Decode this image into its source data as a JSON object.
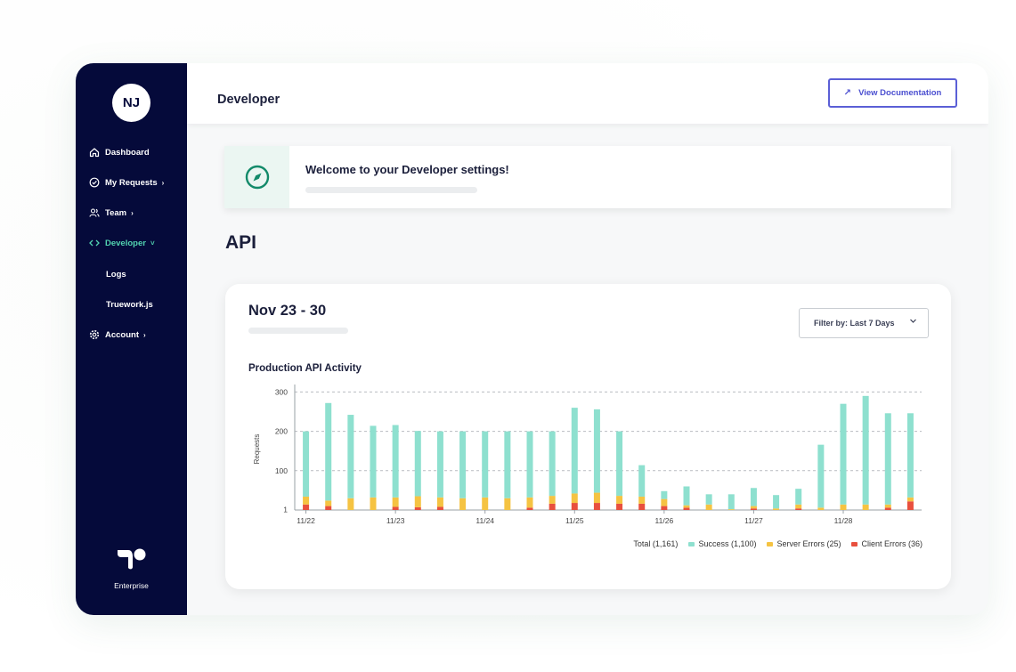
{
  "user": {
    "initials": "NJ"
  },
  "sidebar": {
    "items": [
      {
        "label": "Dashboard",
        "icon": "home-icon"
      },
      {
        "label": "My Requests",
        "icon": "check-circle-icon",
        "chevron": "›"
      },
      {
        "label": "Team",
        "icon": "users-icon",
        "chevron": "›"
      },
      {
        "label": "Developer",
        "icon": "code-icon",
        "chevron": "˅",
        "active": true
      },
      {
        "label": "Logs"
      },
      {
        "label": "Truework.js"
      },
      {
        "label": "Account",
        "icon": "gear-icon",
        "chevron": "›"
      }
    ],
    "brand_label": "Enterprise"
  },
  "header": {
    "title": "Developer",
    "doc_button": "View Documentation"
  },
  "welcome": {
    "title": "Welcome to your Developer settings!"
  },
  "api": {
    "heading": "API",
    "date_range": "Nov 23 - 30",
    "filter_label": "Filter by: Last 7 Days",
    "chart_title": "Production API Activity"
  },
  "colors": {
    "sidebar_bg": "#050a3a",
    "accent": "#52d3b0",
    "success": "#8ee0cf",
    "server_error": "#f5c342",
    "client_error": "#e8503e",
    "button": "#5b5fd6"
  },
  "chart_data": {
    "type": "bar",
    "stacked": true,
    "ylabel": "Requests",
    "xlabel": "",
    "yticks": [
      1,
      100,
      200,
      300
    ],
    "ylim": [
      0,
      310
    ],
    "grid": true,
    "legend_position": "bottom-right",
    "xtick_labels": [
      "11/22",
      "11/23",
      "11/24",
      "11/25",
      "11/26",
      "11/27",
      "11/28"
    ],
    "xtick_positions": [
      0,
      4,
      8,
      12,
      16,
      20,
      24
    ],
    "legend": [
      {
        "key": "total",
        "label": "Total (1,161)"
      },
      {
        "key": "success",
        "label": "Success (1,100)"
      },
      {
        "key": "server",
        "label": "Server Errors (25)"
      },
      {
        "key": "client",
        "label": "Client Errors (36)"
      }
    ],
    "series": [
      {
        "key": "client",
        "values": [
          14,
          10,
          0,
          0,
          8,
          7,
          8,
          0,
          0,
          0,
          6,
          16,
          18,
          18,
          16,
          16,
          10,
          6,
          0,
          0,
          4,
          0,
          4,
          0,
          0,
          0,
          6,
          22
        ]
      },
      {
        "key": "server",
        "values": [
          20,
          14,
          30,
          32,
          24,
          28,
          24,
          30,
          32,
          30,
          26,
          20,
          24,
          26,
          20,
          18,
          18,
          6,
          14,
          2,
          6,
          4,
          10,
          6,
          14,
          14,
          8,
          10
        ]
      },
      {
        "key": "success",
        "values": [
          166,
          248,
          212,
          182,
          184,
          166,
          168,
          170,
          168,
          170,
          168,
          164,
          218,
          212,
          164,
          80,
          20,
          48,
          26,
          38,
          46,
          34,
          40,
          160,
          256,
          276,
          232,
          214
        ]
      }
    ]
  }
}
